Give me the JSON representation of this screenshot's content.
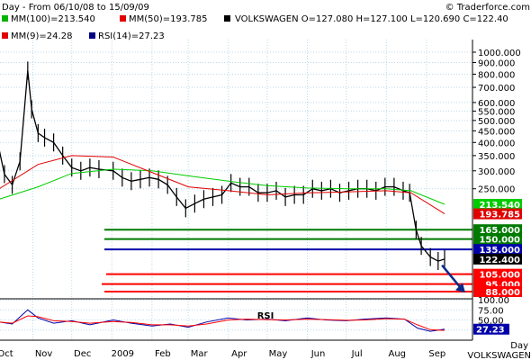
{
  "header": {
    "title": "Day - From 06/10/08 to 15/09/09",
    "copyright": "© Traderforce.com",
    "legend1": [
      {
        "text": "MM(100)=213.540",
        "color": "#00b400"
      },
      {
        "text": "MM(50)=193.785",
        "color": "#e00000"
      },
      {
        "text": "VOLKSWAGEN O=127.080 H=127.100 L=120.690 C=122.40",
        "color": "#000000"
      }
    ],
    "legend2": [
      {
        "text": "MM(9)=24.28",
        "color": "#e00000"
      },
      {
        "text": "RSI(14)=27.23",
        "color": "#000080"
      }
    ]
  },
  "footer": {
    "period": "Day",
    "symbol": "VOLKSWAGEN"
  },
  "colors": {
    "green": "#007a00",
    "red": "#ff0000",
    "blue": "#0000aa",
    "mm100": "#00cc00",
    "mm50": "#e00000",
    "price": "#000000",
    "arrow": "#0a2a8a",
    "grid": "#b8d8ec"
  },
  "chart_data": [
    {
      "type": "line",
      "subtype": "ohlc",
      "scale": "log",
      "ylim": [
        90,
        1100
      ],
      "y_ticks": [
        {
          "value": 1000,
          "label": "1000.000"
        },
        {
          "value": 900,
          "label": "900.000"
        },
        {
          "value": 800,
          "label": "800.000"
        },
        {
          "value": 700,
          "label": "700.000"
        },
        {
          "value": 600,
          "label": "600.000"
        },
        {
          "value": 550,
          "label": "550.000"
        },
        {
          "value": 500,
          "label": "500.000"
        },
        {
          "value": 450,
          "label": "450.000"
        },
        {
          "value": 400,
          "label": "400.000"
        },
        {
          "value": 350,
          "label": "350.000"
        },
        {
          "value": 300,
          "label": "300.000"
        },
        {
          "value": 250,
          "label": "250.000"
        }
      ],
      "x_ticks": [
        "Oct",
        "Nov",
        "Dec",
        "2009",
        "Feb",
        "Mar",
        "Apr",
        "May",
        "Jun",
        "Jul",
        "Aug",
        "Sep"
      ],
      "series": [
        {
          "name": "VOLKSWAGEN",
          "x": [
            "2008-10-06",
            "2008-10-10",
            "2008-10-16",
            "2008-10-22",
            "2008-10-28",
            "2008-10-31",
            "2008-11-05",
            "2008-11-10",
            "2008-11-17",
            "2008-11-24",
            "2008-12-01",
            "2008-12-08",
            "2008-12-15",
            "2008-12-22",
            "2009-01-02",
            "2009-01-09",
            "2009-01-16",
            "2009-01-23",
            "2009-01-30",
            "2009-02-06",
            "2009-02-13",
            "2009-02-20",
            "2009-02-27",
            "2009-03-06",
            "2009-03-13",
            "2009-03-20",
            "2009-03-27",
            "2009-04-03",
            "2009-04-10",
            "2009-04-17",
            "2009-04-24",
            "2009-05-01",
            "2009-05-08",
            "2009-05-15",
            "2009-05-22",
            "2009-05-29",
            "2009-06-05",
            "2009-06-12",
            "2009-06-19",
            "2009-06-26",
            "2009-07-03",
            "2009-07-10",
            "2009-07-17",
            "2009-07-24",
            "2009-07-31",
            "2009-08-07",
            "2009-08-14",
            "2009-08-19",
            "2009-08-24",
            "2009-08-28",
            "2009-09-04",
            "2009-09-10",
            "2009-09-15"
          ],
          "y": [
            370,
            290,
            260,
            330,
            830,
            560,
            440,
            420,
            400,
            350,
            310,
            300,
            310,
            305,
            300,
            280,
            270,
            275,
            280,
            275,
            260,
            230,
            205,
            215,
            225,
            230,
            235,
            265,
            255,
            255,
            240,
            240,
            245,
            230,
            235,
            235,
            250,
            245,
            250,
            240,
            245,
            250,
            250,
            245,
            255,
            255,
            245,
            240,
            165,
            140,
            125,
            120,
            122.4
          ]
        },
        {
          "name": "MM(100)",
          "x": [
            "2008-10-06",
            "2008-11-05",
            "2008-12-01",
            "2009-01-02",
            "2009-02-01",
            "2009-03-01",
            "2009-04-01",
            "2009-05-01",
            "2009-06-01",
            "2009-07-01",
            "2009-08-01",
            "2009-08-20",
            "2009-09-15"
          ],
          "y": [
            225,
            255,
            292,
            305,
            300,
            285,
            270,
            258,
            252,
            250,
            250,
            245,
            213.54
          ]
        },
        {
          "name": "MM(50)",
          "x": [
            "2008-10-06",
            "2008-11-05",
            "2008-12-01",
            "2009-01-02",
            "2009-02-01",
            "2009-03-01",
            "2009-04-01",
            "2009-05-01",
            "2009-06-01",
            "2009-07-01",
            "2009-08-01",
            "2009-08-20",
            "2009-09-15"
          ],
          "y": [
            250,
            320,
            350,
            345,
            295,
            255,
            245,
            235,
            240,
            242,
            245,
            240,
            193.785
          ]
        }
      ],
      "horizontal_levels": [
        {
          "value": 165,
          "label": "165.000",
          "color": "green"
        },
        {
          "value": 150,
          "label": "150.000",
          "color": "green"
        },
        {
          "value": 135,
          "label": "135.000",
          "color": "blue"
        },
        {
          "value": 105,
          "label": "105.000",
          "color": "red"
        },
        {
          "value": 95,
          "label": "95.000",
          "color": "red"
        },
        {
          "value": 88,
          "label": "88.000",
          "color": "red"
        }
      ],
      "value_tags": [
        {
          "value": 213.54,
          "label": "213.540",
          "color": "mm100"
        },
        {
          "value": 193.785,
          "label": "193.785",
          "color": "mm50"
        },
        {
          "value": 122.4,
          "label": "122.400",
          "color": "price"
        }
      ],
      "annotation": {
        "type": "arrow",
        "from": [
          "2009-09-13",
          115
        ],
        "to": [
          "2009-10-01",
          87
        ]
      }
    },
    {
      "type": "line",
      "title": "RSI",
      "ylim": [
        0,
        100
      ],
      "y_ticks": [
        {
          "value": 100,
          "label": "100.00"
        },
        {
          "value": 75,
          "label": "75.00"
        },
        {
          "value": 50,
          "label": "50.00"
        },
        {
          "value": 25,
          "label": "25.00"
        }
      ],
      "series": [
        {
          "name": "RSI(14)",
          "x": [
            "2008-10-06",
            "2008-10-16",
            "2008-10-28",
            "2008-11-05",
            "2008-11-17",
            "2008-12-01",
            "2008-12-15",
            "2009-01-02",
            "2009-01-16",
            "2009-02-01",
            "2009-02-15",
            "2009-03-01",
            "2009-03-15",
            "2009-04-01",
            "2009-04-15",
            "2009-05-01",
            "2009-05-15",
            "2009-06-01",
            "2009-06-15",
            "2009-07-01",
            "2009-07-15",
            "2009-08-01",
            "2009-08-15",
            "2009-08-25",
            "2009-09-04",
            "2009-09-15"
          ],
          "y": [
            45,
            40,
            75,
            55,
            42,
            48,
            38,
            50,
            42,
            35,
            40,
            32,
            45,
            55,
            50,
            52,
            48,
            55,
            50,
            48,
            52,
            55,
            52,
            30,
            22,
            27.23
          ]
        },
        {
          "name": "MM(9)",
          "x": [
            "2008-10-06",
            "2008-10-16",
            "2008-10-28",
            "2008-11-05",
            "2008-11-17",
            "2008-12-01",
            "2008-12-15",
            "2009-01-02",
            "2009-01-16",
            "2009-02-01",
            "2009-02-15",
            "2009-03-01",
            "2009-03-15",
            "2009-04-01",
            "2009-04-15",
            "2009-05-01",
            "2009-05-15",
            "2009-06-01",
            "2009-06-15",
            "2009-07-01",
            "2009-07-15",
            "2009-08-01",
            "2009-08-15",
            "2009-08-25",
            "2009-09-04",
            "2009-09-15"
          ],
          "y": [
            45,
            42,
            60,
            58,
            48,
            46,
            42,
            46,
            44,
            38,
            38,
            35,
            40,
            50,
            52,
            51,
            50,
            52,
            51,
            49,
            50,
            53,
            52,
            38,
            26,
            24.28
          ]
        }
      ],
      "value_tag": {
        "value": 27.23,
        "label": "27.23",
        "color": "blue"
      }
    }
  ]
}
